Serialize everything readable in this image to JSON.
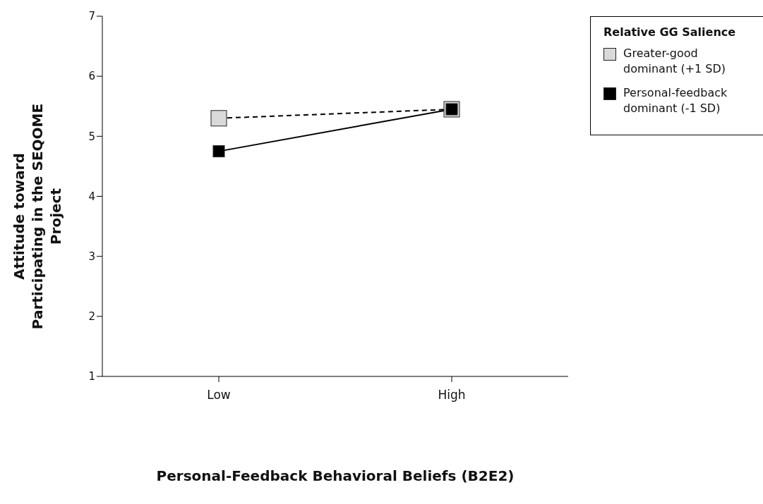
{
  "chart_data": {
    "type": "line",
    "xlabel": "Personal-Feedback Behavioral Beliefs (B2E2)",
    "ylabel": "Attitude toward Participating in the SEQOME Project",
    "legend_title": "Relative GG Salience",
    "categories": [
      "Low",
      "High"
    ],
    "series": [
      {
        "name": "Greater-good dominant (+1 SD)",
        "color": "#d9d9d9",
        "values": [
          5.3,
          5.45
        ],
        "line_style": "dashed"
      },
      {
        "name": "Personal-feedback dominant (-1 SD)",
        "color": "#000000",
        "values": [
          4.75,
          5.45
        ],
        "line_style": "solid"
      }
    ],
    "ylim": [
      1,
      7
    ],
    "yticks": [
      1,
      2,
      3,
      4,
      5,
      6,
      7
    ],
    "marker": "square",
    "legend": "top right",
    "grid": false
  }
}
